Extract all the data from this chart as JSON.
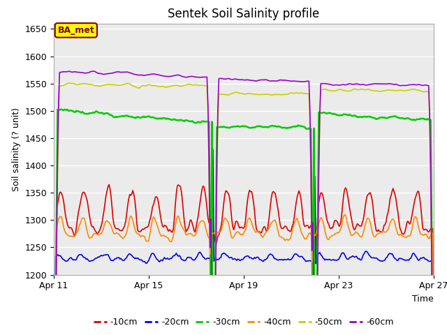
{
  "title": "Sentek Soil Salinity profile",
  "ylabel": "Soil salinity (? unit)",
  "xlabel": "Time",
  "ylim": [
    1200,
    1660
  ],
  "xlim": [
    0,
    384
  ],
  "bg_color": "#ebebeb",
  "fig_bg": "#ffffff",
  "legend_label": "BA_met",
  "legend_label_bg": "#ffff00",
  "legend_label_border": "#800000",
  "xtick_labels": [
    "Apr 11",
    "Apr 15",
    "Apr 19",
    "Apr 23",
    "Apr 27"
  ],
  "xtick_positions": [
    0,
    96,
    192,
    288,
    384
  ],
  "ytick_labels": [
    "1200",
    "1250",
    "1300",
    "1350",
    "1400",
    "1450",
    "1500",
    "1550",
    "1600",
    "1650"
  ],
  "ytick_positions": [
    1200,
    1250,
    1300,
    1350,
    1400,
    1450,
    1500,
    1550,
    1600,
    1650
  ],
  "series": {
    "-10cm": {
      "color": "#dd0000",
      "linewidth": 1.2
    },
    "-20cm": {
      "color": "#0000ee",
      "linewidth": 1.2
    },
    "-30cm": {
      "color": "#00cc00",
      "linewidth": 1.8
    },
    "-40cm": {
      "color": "#ff8800",
      "linewidth": 1.2
    },
    "-50cm": {
      "color": "#cccc00",
      "linewidth": 1.2
    },
    "-60cm": {
      "color": "#9900cc",
      "linewidth": 1.2
    }
  },
  "spike_17": 161,
  "spike_22": 264
}
